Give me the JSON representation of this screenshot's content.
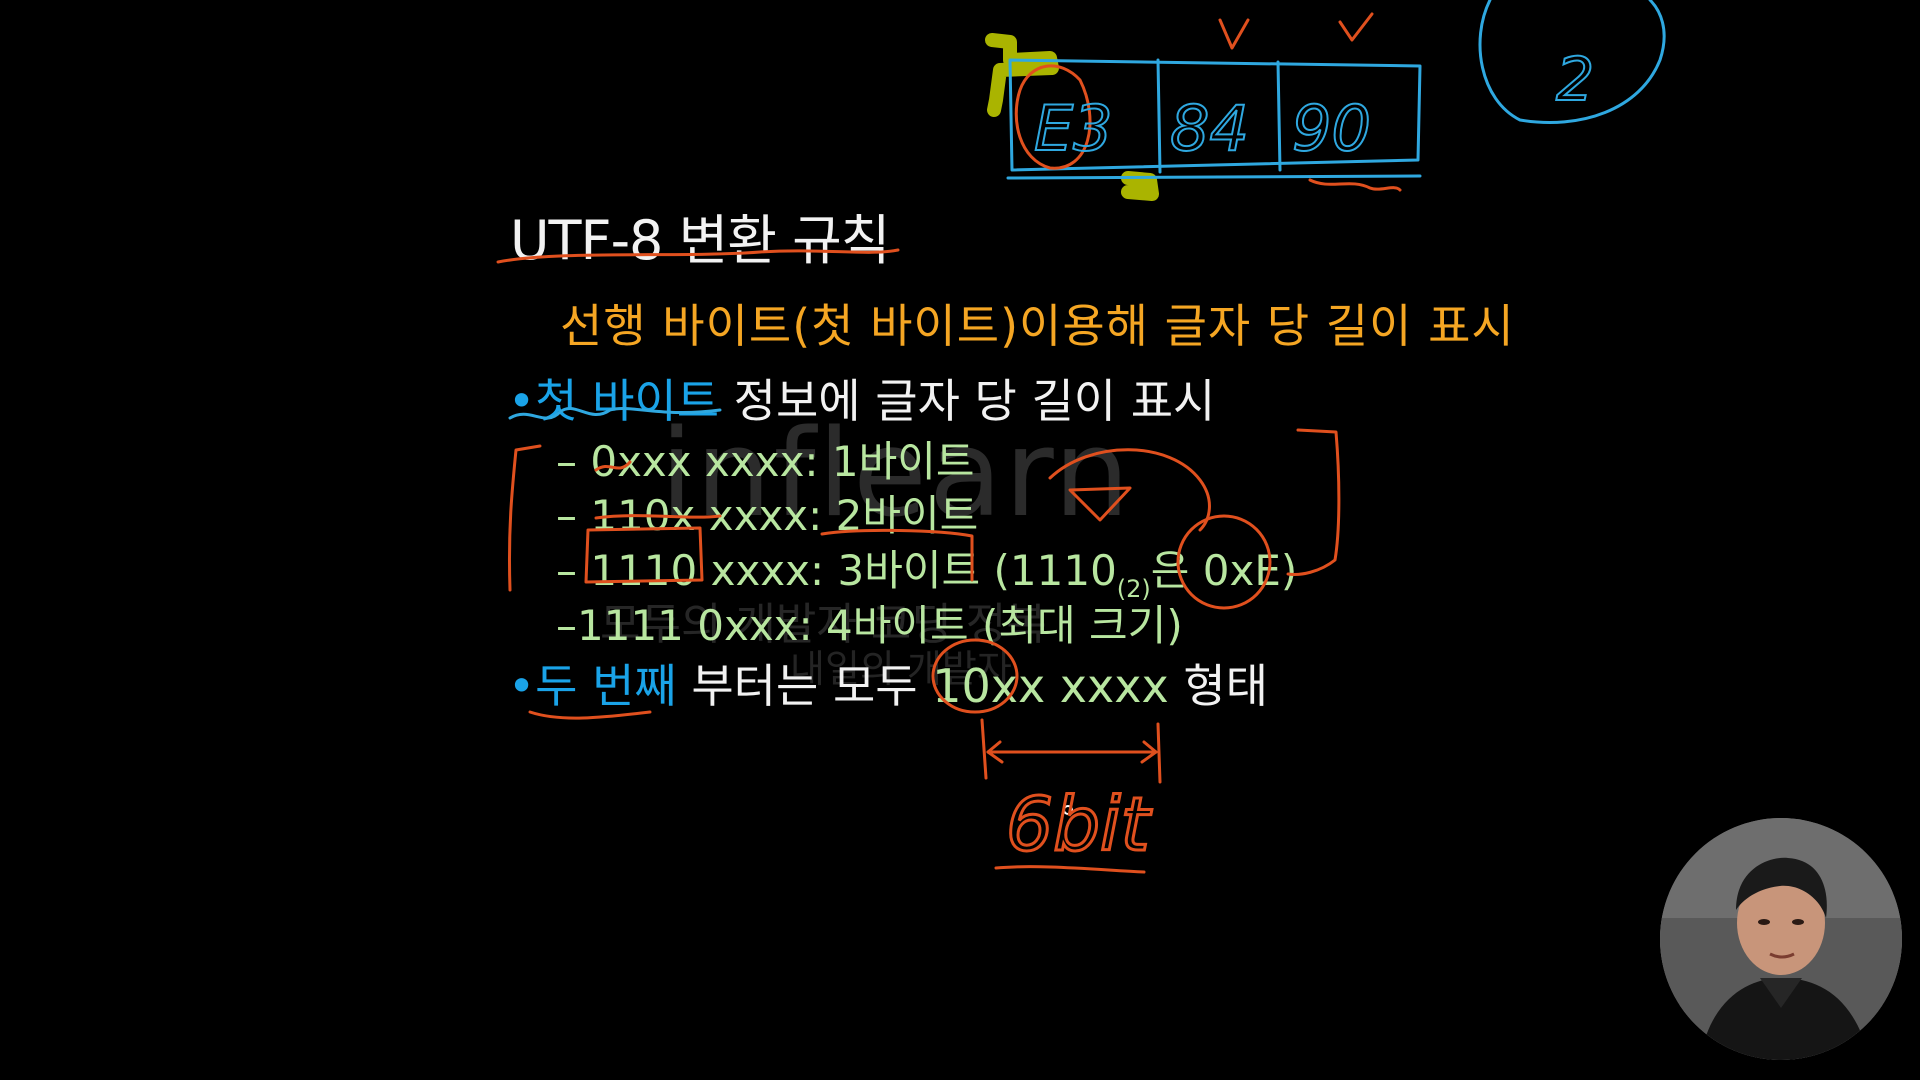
{
  "slide": {
    "title": "UTF-8 변환 규칙",
    "subtitle": "선행 바이트(첫 바이트)이용해 글자 당 길이 표시",
    "bullet1": {
      "dot": "•",
      "highlight": "첫 바이트",
      "rest": " 정보에 글자 당 길이 표시"
    },
    "rules": [
      {
        "prefix": "– ",
        "text": "0xxx xxxx: 1바이트"
      },
      {
        "prefix": "– ",
        "text": "110x xxxx: 2바이트"
      },
      {
        "prefix": "– ",
        "text": "1110 xxxx: 3바이트 (1110",
        "sub": "(2)",
        "tail": "은 0xE)"
      },
      {
        "prefix": "–",
        "text": "1111 0xxx: 4바이트 (최대 크기)"
      }
    ],
    "bullet2": {
      "dot": "•",
      "highlight": "두 번째",
      "rest_white1": " 부터는 모두 ",
      "rest_green": "10xx xxxx",
      "rest_white2": " 형태"
    }
  },
  "annotations": {
    "bytes": [
      "E3",
      "84",
      "90"
    ],
    "bit_note": "6bit",
    "check_marks": [
      "v",
      "v"
    ],
    "side_note": "2"
  },
  "watermark": {
    "brand": "inflearn",
    "line1": "모두의 개발자 코딩 정복",
    "line2": "내일의 개발자"
  },
  "colors": {
    "background": "#000000",
    "title": "#f2f2f2",
    "subtitle": "#f5a623",
    "blue_accent": "#1aa3e8",
    "green_text": "#b8e6a0",
    "pen_orange": "#e0501e",
    "pen_blue": "#2fa8e0",
    "highlighter": "#c8d400"
  },
  "webcam": {
    "label": "presenter-webcam"
  }
}
